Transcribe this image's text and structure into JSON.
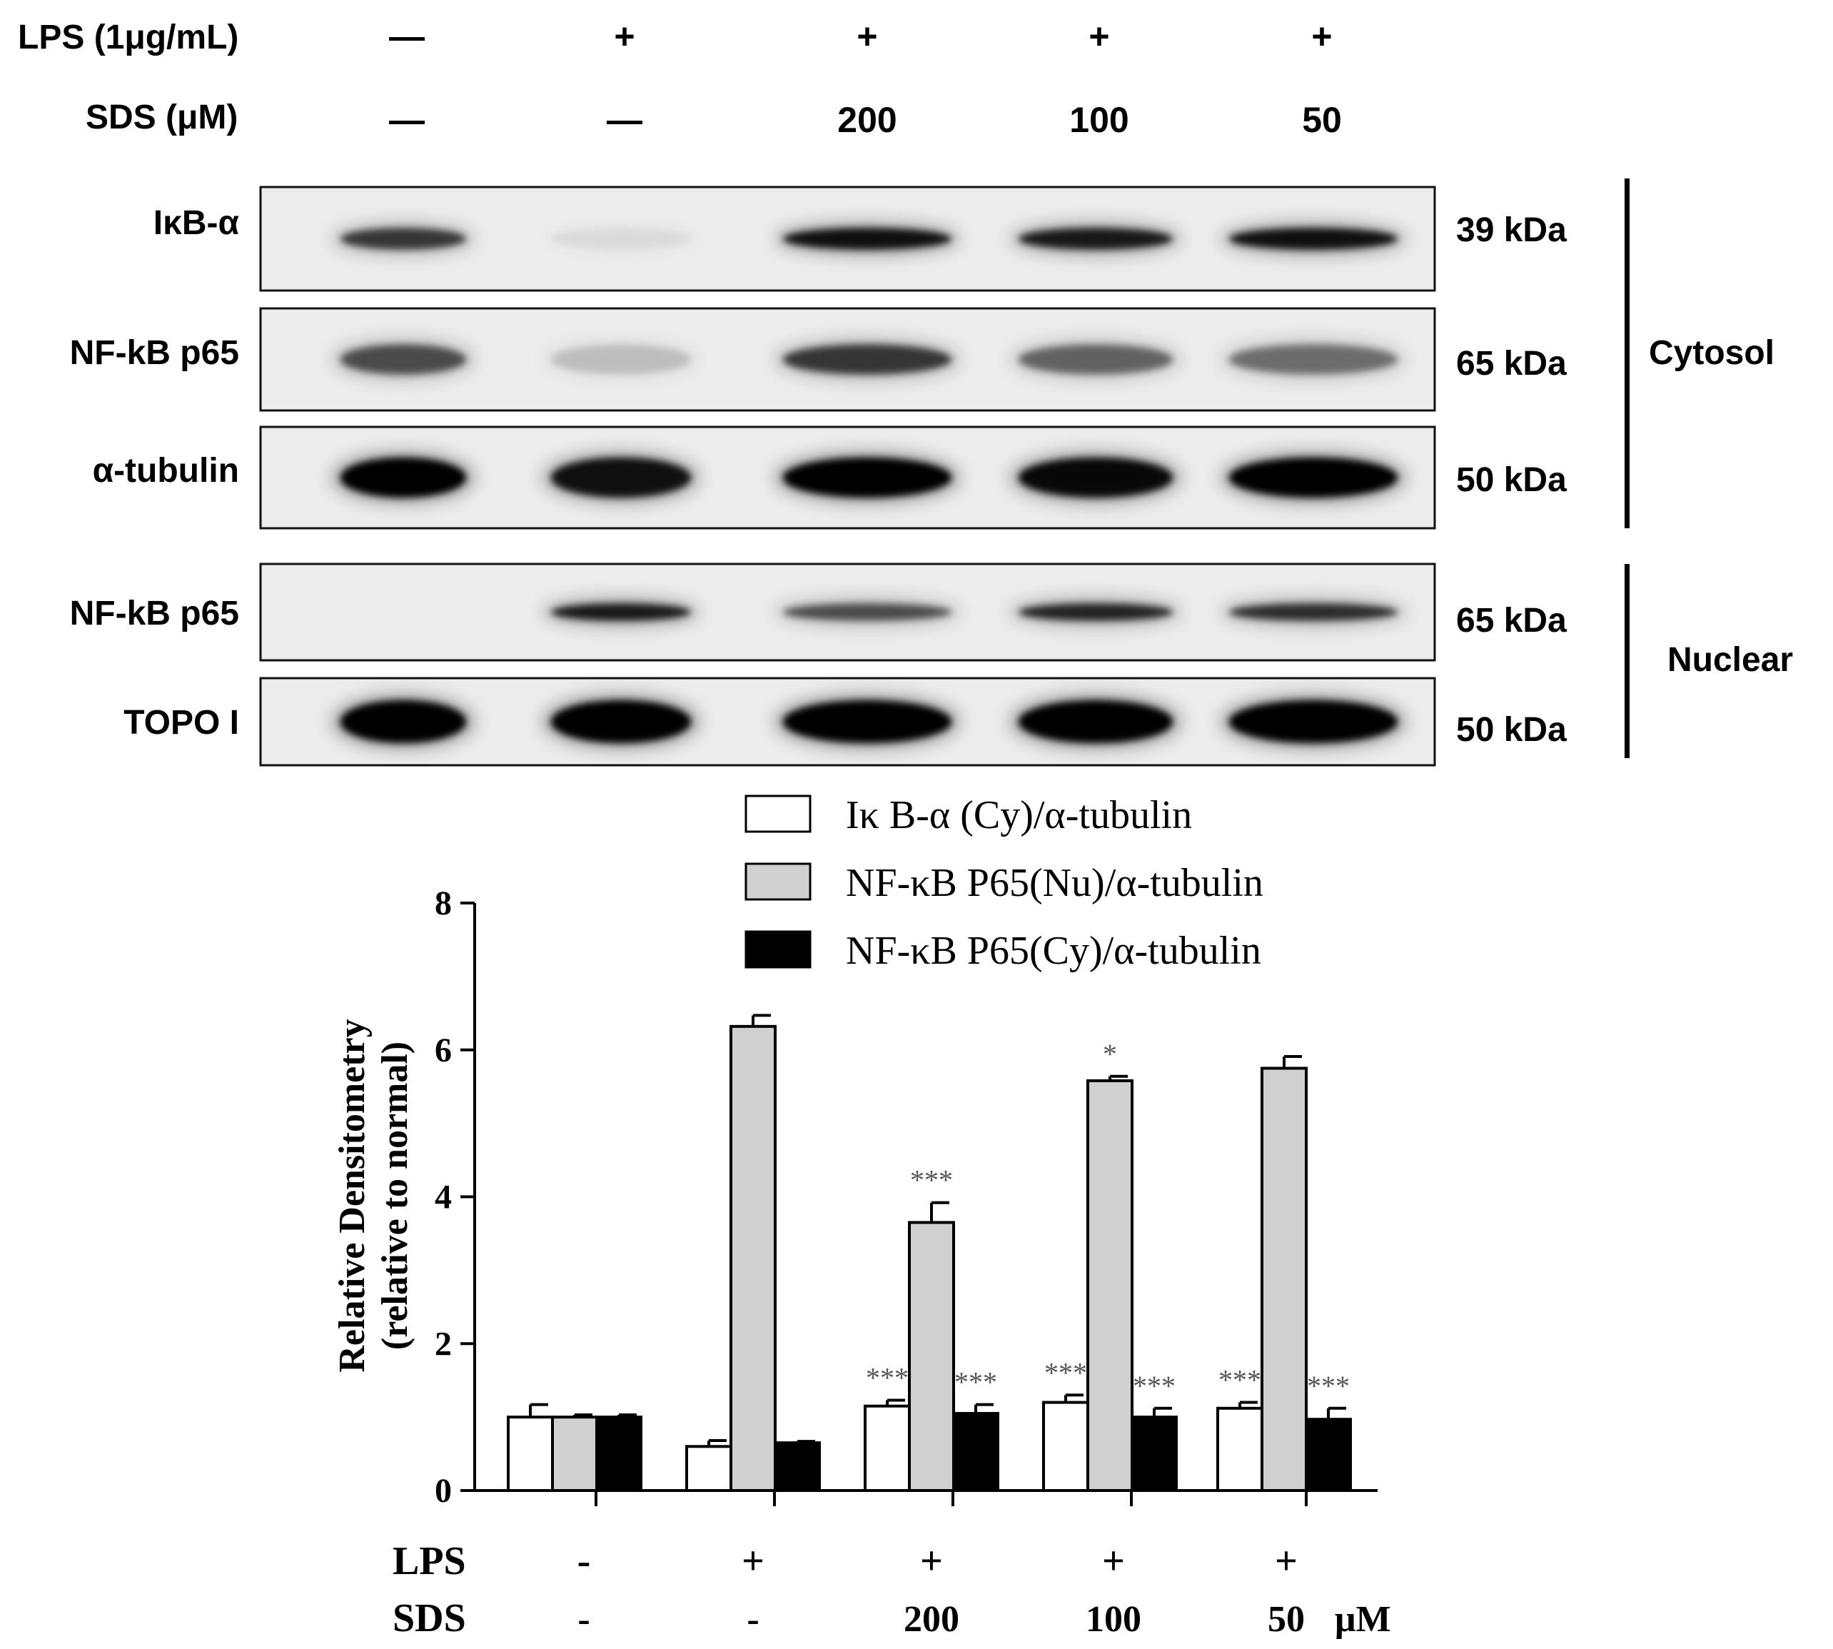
{
  "treatment_header": {
    "lps_label": "LPS (1μg/mL)",
    "sds_label": "SDS (μM)",
    "lanes": [
      {
        "lps": "—",
        "sds": "—"
      },
      {
        "lps": "+",
        "sds": "—"
      },
      {
        "lps": "+",
        "sds": "200"
      },
      {
        "lps": "+",
        "sds": "100"
      },
      {
        "lps": "+",
        "sds": "50"
      }
    ]
  },
  "blots": [
    {
      "label": "IκB-α",
      "size": "39 kDa",
      "fraction": "cytosol",
      "band_intensity": [
        0.7,
        0.05,
        0.9,
        0.85,
        0.9
      ]
    },
    {
      "label": "NF-kB p65",
      "size": "65 kDa",
      "fraction": "cytosol",
      "band_intensity": [
        0.6,
        0.15,
        0.7,
        0.5,
        0.45
      ]
    },
    {
      "label": "α-tubulin",
      "size": "50 kDa",
      "fraction": "cytosol",
      "band_intensity": [
        1.0,
        0.9,
        1.0,
        0.95,
        1.0
      ]
    },
    {
      "label": "NF-kB p65",
      "size": "65 kDa",
      "fraction": "nuclear",
      "band_intensity": [
        0.0,
        0.85,
        0.6,
        0.8,
        0.75
      ]
    },
    {
      "label": "TOPO I",
      "size": "50 kDa",
      "fraction": "nuclear",
      "band_intensity": [
        1.0,
        1.0,
        1.0,
        1.0,
        1.0
      ]
    }
  ],
  "fractions": {
    "cytosol": "Cytosol",
    "nuclear": "Nuclear"
  },
  "chart_data": {
    "type": "bar",
    "categories": [
      "LPS -, SDS -",
      "LPS +, SDS -",
      "LPS +, SDS 200",
      "LPS +, SDS 100",
      "LPS +, SDS 50"
    ],
    "ylabel_line1": "Relative Densitometry",
    "ylabel_line2": "(relative to normal)",
    "ylim": [
      0,
      8
    ],
    "yticks": [
      "0",
      "2",
      "4",
      "6",
      "8"
    ],
    "legend_position": "top",
    "series": [
      {
        "name": "Iκ B-α (Cy)/α-tubulin",
        "color": "#ffffff",
        "values": [
          1.0,
          0.6,
          1.15,
          1.2,
          1.12
        ],
        "errors": [
          0.17,
          0.08,
          0.08,
          0.1,
          0.08
        ],
        "significance": [
          "",
          "",
          "***",
          "***",
          "***"
        ]
      },
      {
        "name": "NF-κB P65(Nu)/α-tubulin",
        "color": "#d0d0d0",
        "values": [
          1.0,
          6.32,
          3.65,
          5.58,
          5.75
        ],
        "errors": [
          0.03,
          0.15,
          0.27,
          0.06,
          0.16
        ],
        "significance": [
          "",
          "",
          "***",
          "*",
          ""
        ]
      },
      {
        "name": "NF-κB P65(Cy)/α-tubulin",
        "color": "#000000",
        "values": [
          1.0,
          0.65,
          1.05,
          1.0,
          0.97
        ],
        "errors": [
          0.03,
          0.02,
          0.12,
          0.12,
          0.15
        ],
        "significance": [
          "",
          "",
          "***",
          "***",
          "***"
        ]
      }
    ],
    "x_rows": {
      "lps_label": "LPS",
      "sds_label": "SDS",
      "lps": [
        "-",
        "+",
        "+",
        "+",
        "+"
      ],
      "sds": [
        "-",
        "-",
        "200",
        "100",
        "50"
      ],
      "unit": "μM"
    }
  }
}
